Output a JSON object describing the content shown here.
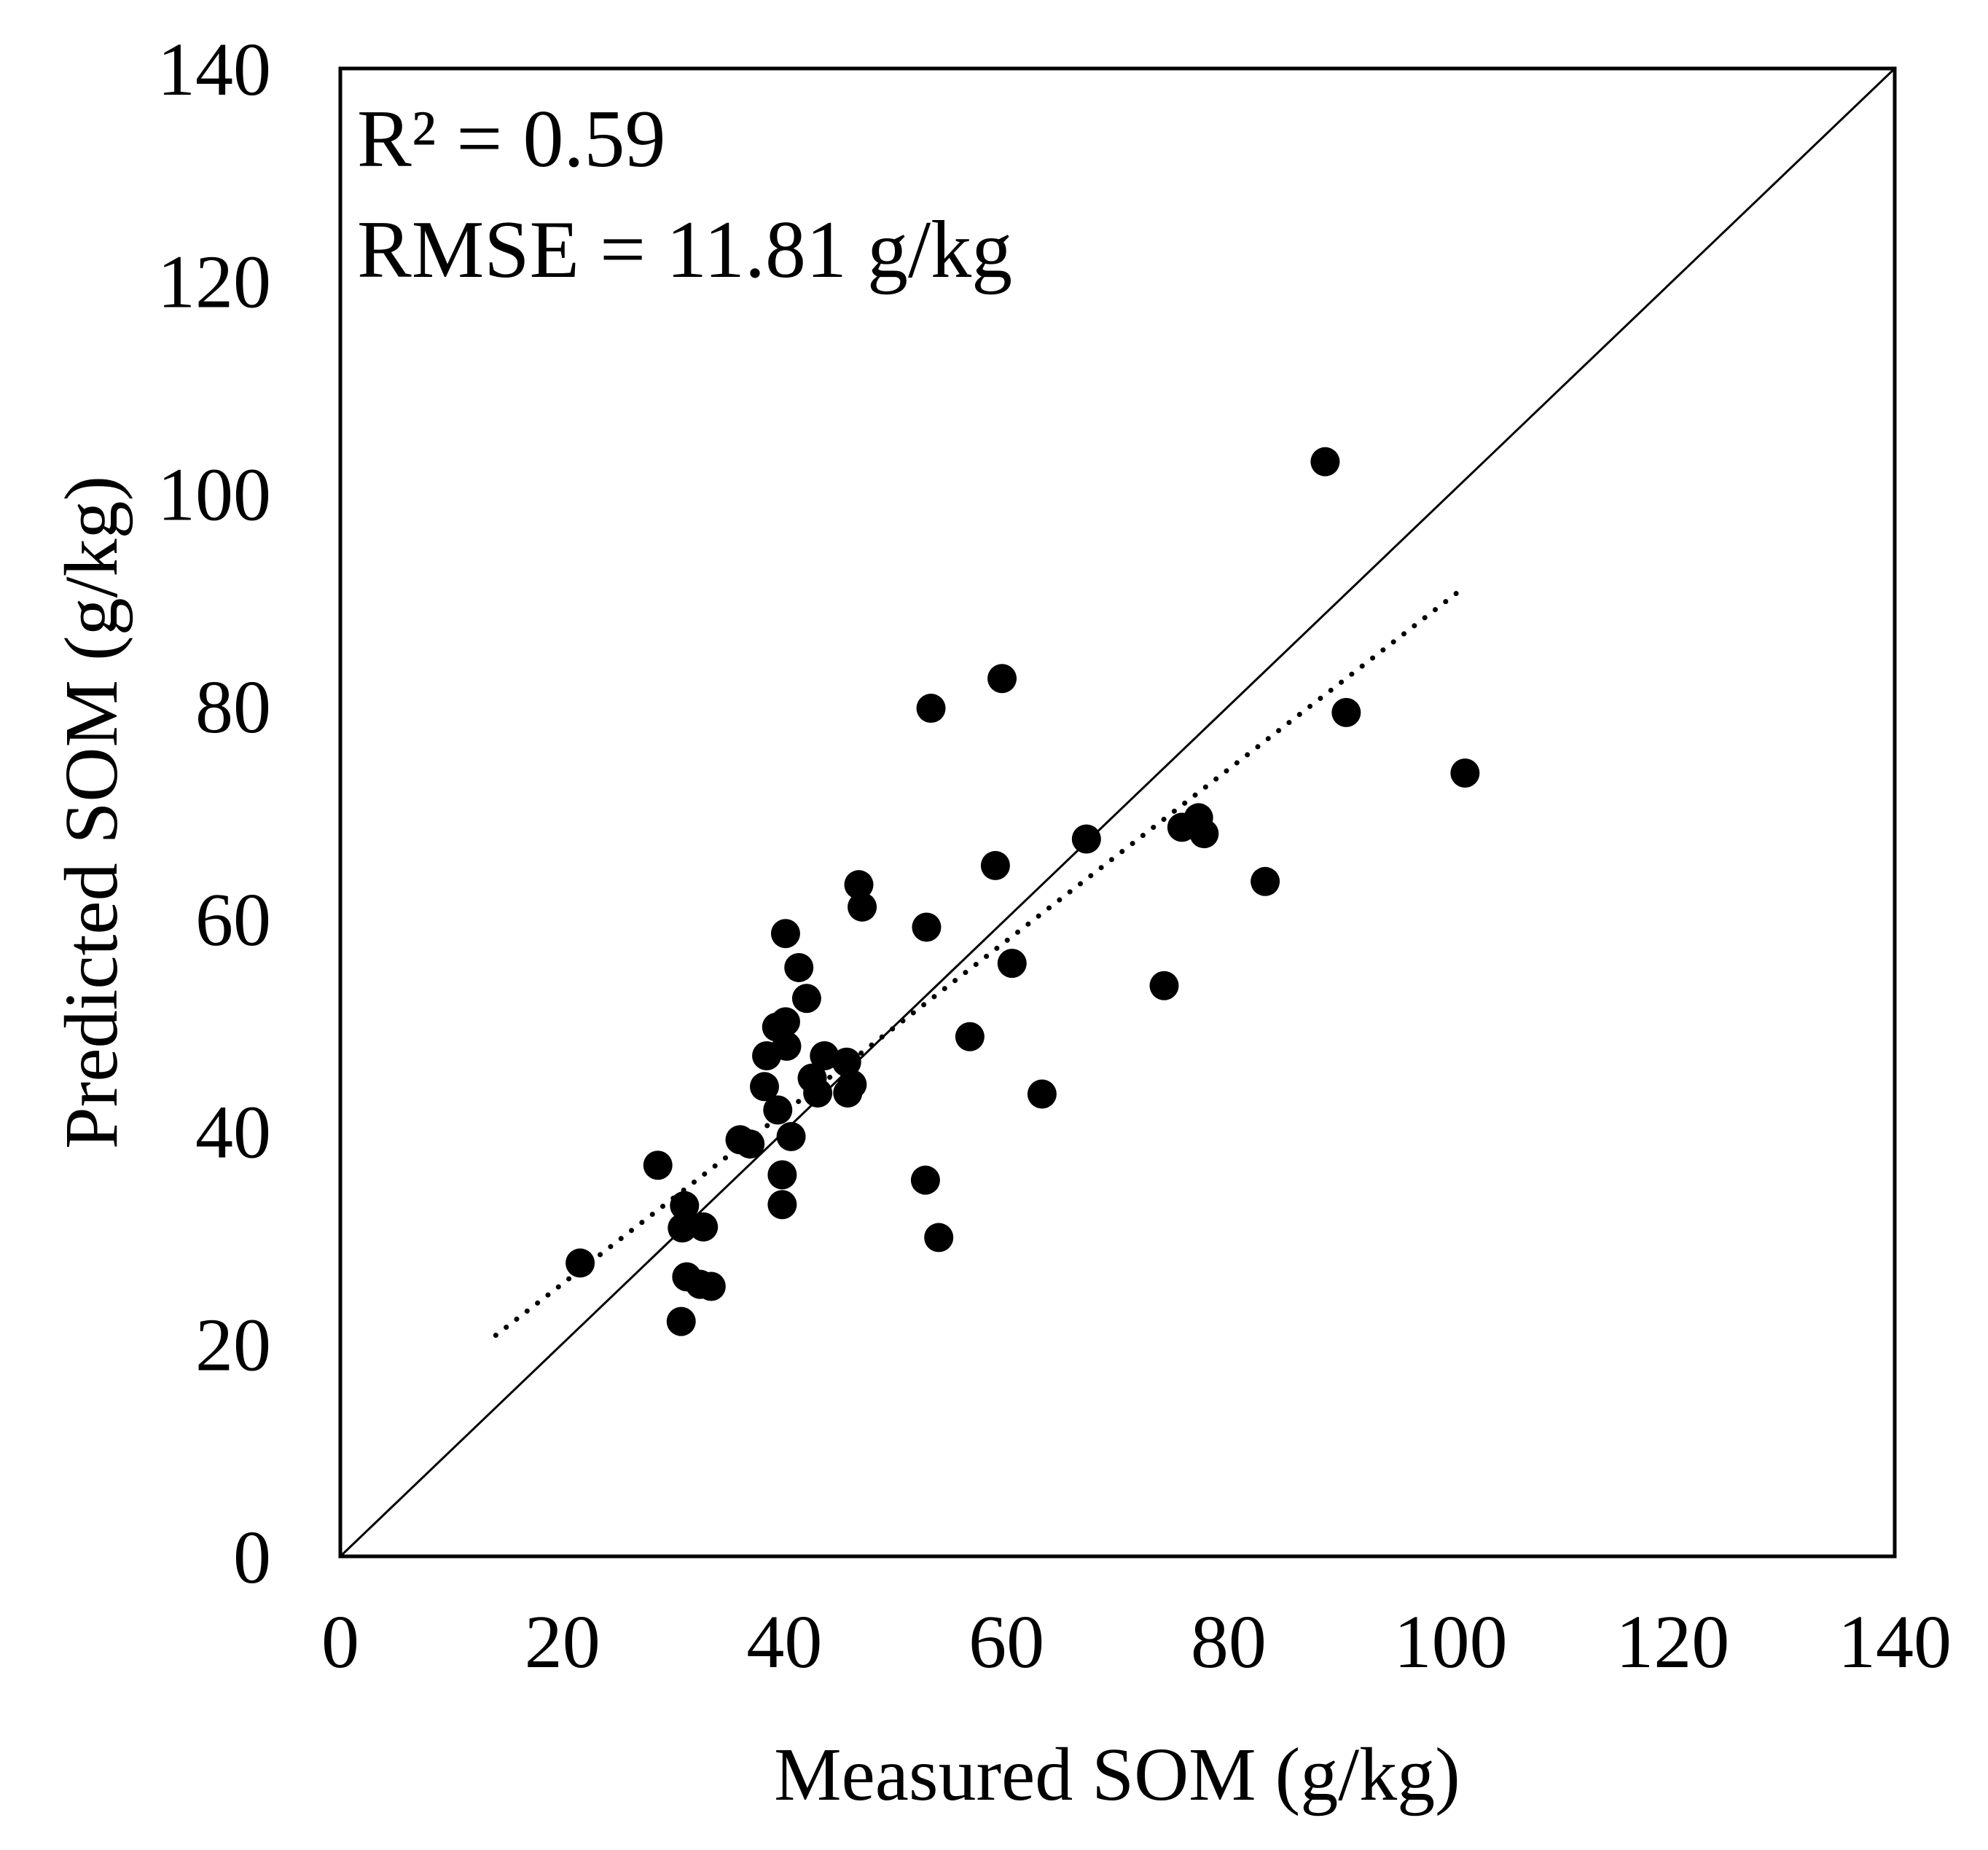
{
  "chart_data": {
    "type": "scatter",
    "title": "",
    "xlabel": "Measured SOM (g/kg)",
    "ylabel": "Predicted SOM (g/kg)",
    "xlim": [
      0,
      140
    ],
    "ylim": [
      0,
      140
    ],
    "xticks": [
      "0",
      "20",
      "40",
      "60",
      "80",
      "100",
      "120",
      "140"
    ],
    "yticks": [
      "0",
      "20",
      "40",
      "60",
      "80",
      "100",
      "120",
      "140"
    ],
    "grid": false,
    "legend": "none",
    "annotations": {
      "r2": "R² = 0.59",
      "rmse": "RMSE = 11.81 g/kg"
    },
    "reference_line": {
      "name": "1:1 line",
      "style": "solid",
      "x": [
        0,
        140
      ],
      "y": [
        0,
        140
      ]
    },
    "trend_line": {
      "name": "linear fit",
      "style": "dotted",
      "x": [
        14,
        100.5
      ],
      "y": [
        20.8,
        90.6
      ]
    },
    "series": [
      {
        "name": "samples",
        "points": [
          [
            21.6,
            27.6
          ],
          [
            28.6,
            36.8
          ],
          [
            30.7,
            22.1
          ],
          [
            31.0,
            33.0
          ],
          [
            30.8,
            30.9
          ],
          [
            31.2,
            26.3
          ],
          [
            32.4,
            25.6
          ],
          [
            32.7,
            31.0
          ],
          [
            33.4,
            25.4
          ],
          [
            36.0,
            39.2
          ],
          [
            36.9,
            38.8
          ],
          [
            38.2,
            44.2
          ],
          [
            38.4,
            47.1
          ],
          [
            39.3,
            49.8
          ],
          [
            39.4,
            42.0
          ],
          [
            39.8,
            35.9
          ],
          [
            39.8,
            33.1
          ],
          [
            40.1,
            58.6
          ],
          [
            40.1,
            50.3
          ],
          [
            40.2,
            48.0
          ],
          [
            40.6,
            39.5
          ],
          [
            41.3,
            55.4
          ],
          [
            42.0,
            52.5
          ],
          [
            42.5,
            45.0
          ],
          [
            43.0,
            43.6
          ],
          [
            43.6,
            47.1
          ],
          [
            45.6,
            46.5
          ],
          [
            45.7,
            43.6
          ],
          [
            46.1,
            44.4
          ],
          [
            46.7,
            63.2
          ],
          [
            47.0,
            61.1
          ],
          [
            52.7,
            35.4
          ],
          [
            52.8,
            59.2
          ],
          [
            53.2,
            79.8
          ],
          [
            53.9,
            30.0
          ],
          [
            56.7,
            48.9
          ],
          [
            59.0,
            65.0
          ],
          [
            59.6,
            82.6
          ],
          [
            60.5,
            55.8
          ],
          [
            63.2,
            43.5
          ],
          [
            67.2,
            67.5
          ],
          [
            74.2,
            53.7
          ],
          [
            75.8,
            68.6
          ],
          [
            77.3,
            69.5
          ],
          [
            77.8,
            68.0
          ],
          [
            83.3,
            63.5
          ],
          [
            88.7,
            103.0
          ],
          [
            90.6,
            79.4
          ],
          [
            101.3,
            73.7
          ]
        ]
      }
    ]
  }
}
